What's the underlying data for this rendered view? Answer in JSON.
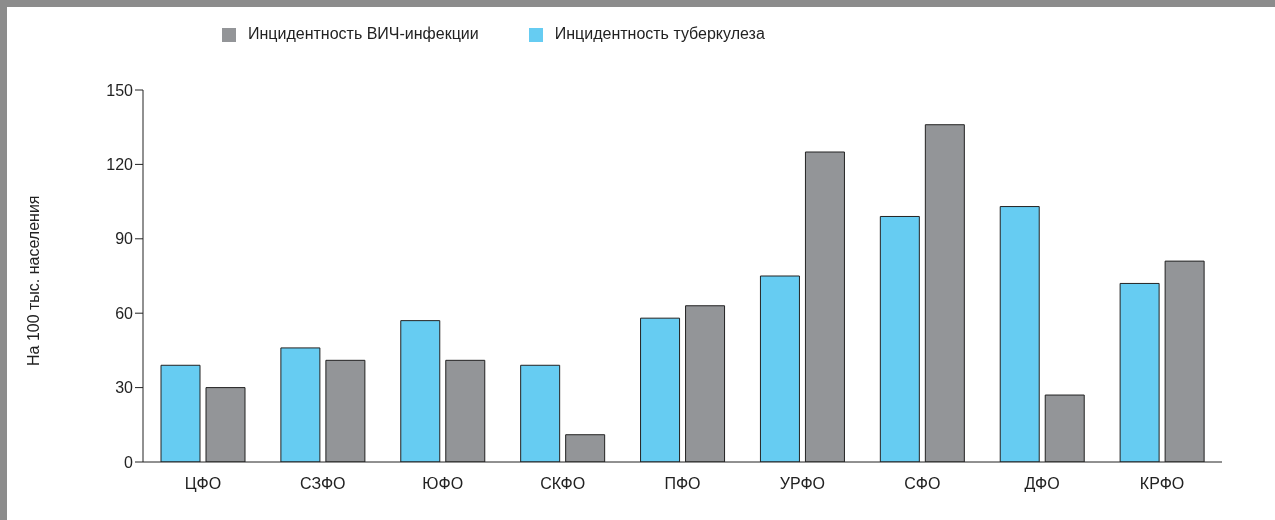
{
  "chart_data": {
    "type": "bar",
    "ylabel": "На 100 тыс.  населения",
    "categories": [
      "ЦФО",
      "СЗФО",
      "ЮФО",
      "СКФО",
      "ПФО",
      "УРФО",
      "СФО",
      "ДФО",
      "КРФО"
    ],
    "series": [
      {
        "name": "Инцидентность туберкулеза",
        "color": "#66ccf2",
        "values": [
          39,
          46,
          57,
          39,
          58,
          75,
          99,
          103,
          72
        ]
      },
      {
        "name": "Инцидентность ВИЧ-инфекции",
        "color": "#939598",
        "values": [
          30,
          41,
          41,
          11,
          63,
          125,
          136,
          27,
          81
        ]
      }
    ],
    "ylim": [
      0,
      150
    ],
    "yticks": [
      0,
      30,
      60,
      90,
      120,
      150
    ],
    "grid": false,
    "legend": "top left"
  }
}
